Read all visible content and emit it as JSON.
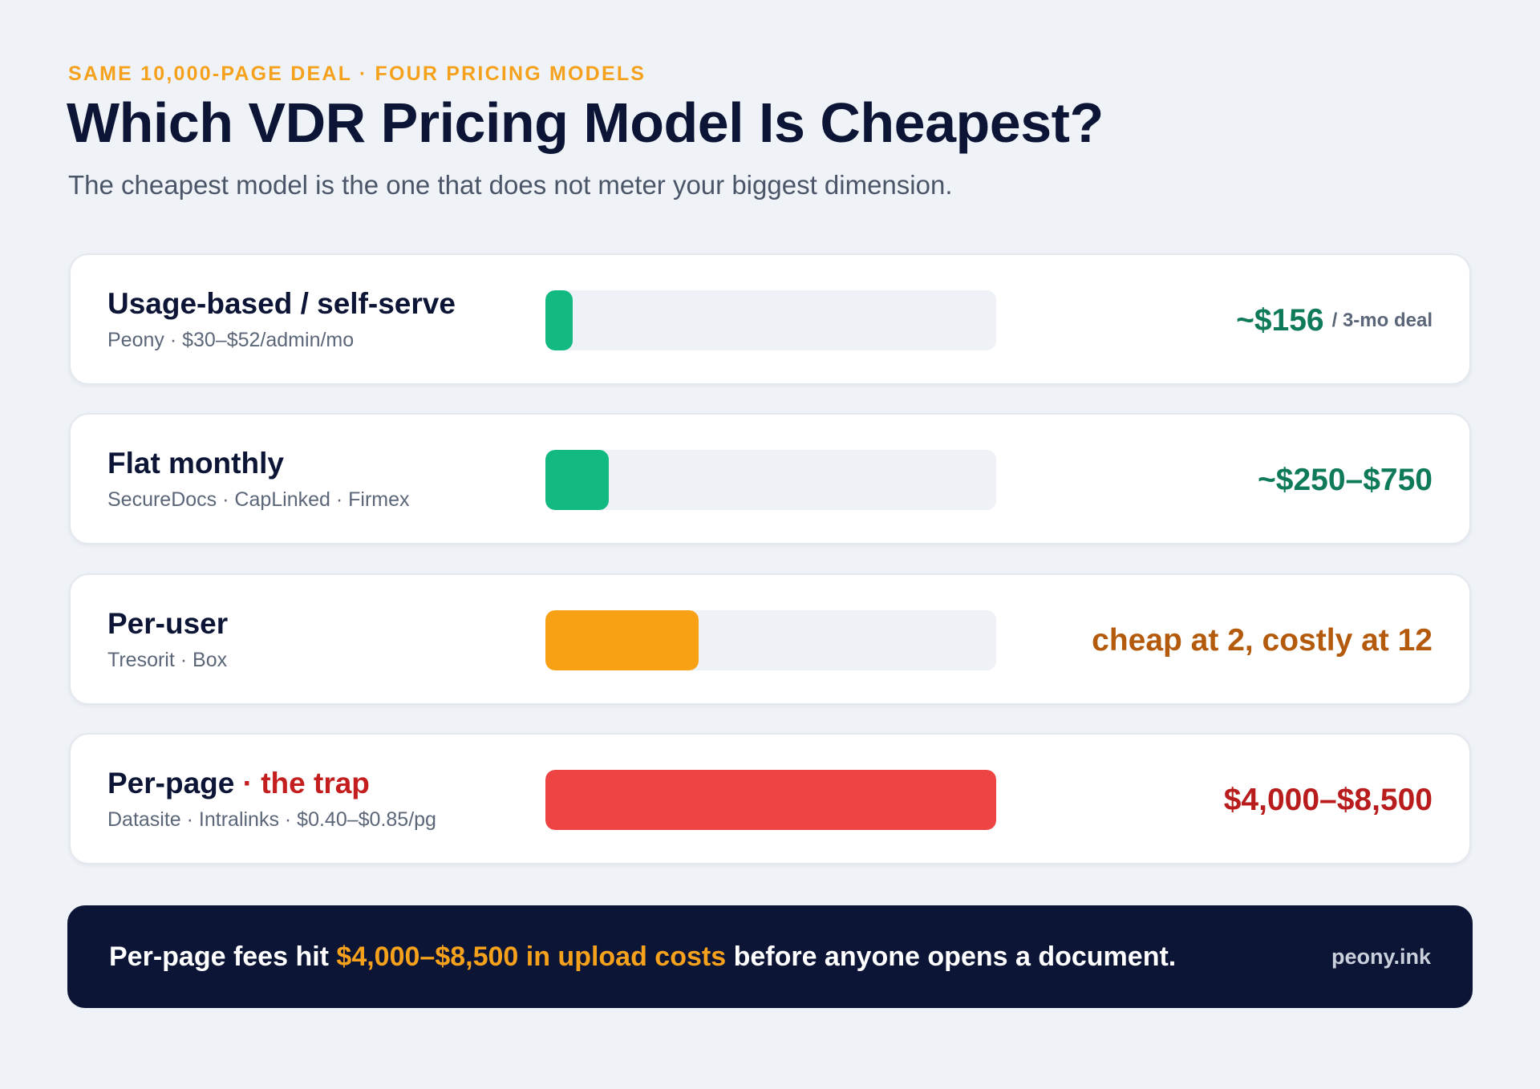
{
  "eyebrow": "SAME 10,000-PAGE DEAL · FOUR PRICING MODELS",
  "title": "Which VDR Pricing Model Is Cheapest?",
  "subtitle": "The cheapest model is the one that does not meter your biggest dimension.",
  "colors": {
    "green": "#12b981",
    "orange": "#f9a114",
    "red": "#ef4444",
    "green_text": "#0e7a5a",
    "orange_text": "#b45a0c",
    "red_text": "#b91c1c",
    "navy": "#0c1535",
    "accent": "#f5a11c"
  },
  "chart_data": {
    "type": "bar",
    "orientation": "horizontal",
    "categories": [
      "Usage-based / self-serve",
      "Flat monthly",
      "Per-user",
      "Per-page"
    ],
    "values": [
      0.06,
      0.14,
      0.34,
      1.0
    ],
    "value_scale": "relative cost (fraction of track)",
    "xlim": [
      0,
      1
    ],
    "grid": false
  },
  "rows": [
    {
      "name": "Usage-based / self-serve",
      "name_suffix": "",
      "vendors": "Peony · $30–$52/admin/mo",
      "price": "~$156",
      "price_unit": "/ 3-mo deal",
      "bar_color": "#12b981",
      "price_color": "#0e7a5a"
    },
    {
      "name": "Flat monthly",
      "name_suffix": "",
      "vendors": "SecureDocs · CapLinked · Firmex",
      "price": "~$250–$750",
      "price_unit": "",
      "bar_color": "#12b981",
      "price_color": "#0e7a5a"
    },
    {
      "name": "Per-user",
      "name_suffix": "",
      "vendors": "Tresorit · Box",
      "price": "cheap at 2, costly at 12",
      "price_unit": "",
      "bar_color": "#f9a114",
      "price_color": "#b45a0c"
    },
    {
      "name": "Per-page",
      "name_suffix": " · the trap",
      "vendors": "Datasite · Intralinks · $0.40–$0.85/pg",
      "price": "$4,000–$8,500",
      "price_unit": "",
      "bar_color": "#ef4444",
      "price_color": "#b91c1c"
    }
  ],
  "footer": {
    "text_before": "Per-page fees hit ",
    "highlight": "$4,000–$8,500 in upload costs",
    "text_after": " before anyone opens a document.",
    "brand": "peony.ink"
  }
}
